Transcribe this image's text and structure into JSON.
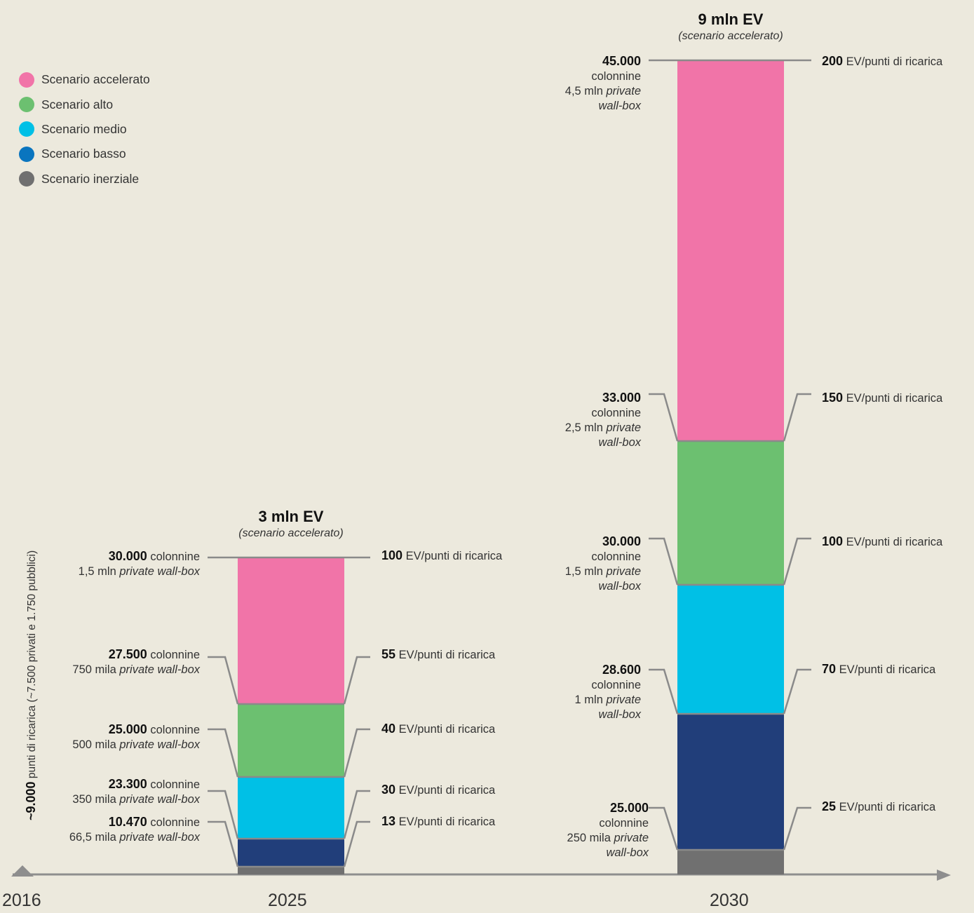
{
  "chart_data": {
    "type": "bar",
    "stacked": true,
    "legend": {
      "position": "top-left",
      "entries": [
        {
          "name": "Scenario accelerato",
          "color": "#f174a8"
        },
        {
          "name": "Scenario alto",
          "color": "#6cc070"
        },
        {
          "name": "Scenario medio",
          "color": "#00c0e6"
        },
        {
          "name": "Scenario basso",
          "color": "#0a75bf"
        },
        {
          "name": "Scenario inerziale",
          "color": "#707070"
        }
      ]
    },
    "x_axis": {
      "labels": [
        "2016",
        "2025",
        "2030"
      ]
    },
    "y_axis_label": {
      "bold": "~9.000",
      "text": " punti di ricarica (~7.500 privati e 1.750 pubblici)"
    },
    "bars": [
      {
        "year": "2025",
        "title": "3 mln EV",
        "subtitle": "(scenario accelerato)",
        "segments": [
          {
            "color": "#707070",
            "value": 10.47
          },
          {
            "color": "#213e7a",
            "value": 23.3
          },
          {
            "color": "#00c0e6",
            "value": 25.0
          },
          {
            "color": "#6cc070",
            "value": 27.5
          },
          {
            "color": "#f174a8",
            "value": 30.0
          }
        ],
        "levels": [
          {
            "value": 10.47,
            "left_bold": "10.470",
            "left_rest": " colonnine",
            "left_line2": "66,5 mila ",
            "left_italic": "private wall-box",
            "right_bold": "13",
            "right_text": " EV/punti di ricarica"
          },
          {
            "value": 23.3,
            "left_bold": "23.300",
            "left_rest": " colonnine",
            "left_line2": "350 mila ",
            "left_italic": "private wall-box",
            "right_bold": "30",
            "right_text": " EV/punti di ricarica"
          },
          {
            "value": 25.0,
            "left_bold": "25.000",
            "left_rest": " colonnine",
            "left_line2": "500 mila ",
            "left_italic": "private wall-box",
            "right_bold": "40",
            "right_text": " EV/punti di ricarica"
          },
          {
            "value": 27.5,
            "left_bold": "27.500",
            "left_rest": " colonnine",
            "left_line2": "750 mila ",
            "left_italic": "private wall-box",
            "right_bold": "55",
            "right_text": " EV/punti di ricarica"
          },
          {
            "value": 30.0,
            "left_bold": "30.000",
            "left_rest": " colonnine",
            "left_line2": "1,5 mln ",
            "left_italic": "private wall-box",
            "right_bold": "100",
            "right_text": " EV/punti di ricarica"
          }
        ]
      },
      {
        "year": "2030",
        "title": "9 mln EV",
        "subtitle": "(scenario accelerato)",
        "segments": [
          {
            "color": "#707070",
            "value": 25.0
          },
          {
            "color": "#213e7a",
            "value": 28.6
          },
          {
            "color": "#00c0e6",
            "value": 30.0
          },
          {
            "color": "#6cc070",
            "value": 33.0
          },
          {
            "color": "#f174a8",
            "value": 45.0
          }
        ],
        "levels": [
          {
            "value": 25.0,
            "left_bold": "25.000",
            "left_rest": "colonnine",
            "left_line2": "250 mila ",
            "left_italic": "private",
            "left_line3": "wall-box",
            "right_bold": "25",
            "right_text": " EV/punti di ricarica"
          },
          {
            "value": 28.6,
            "left_bold": "28.600",
            "left_rest": "colonnine",
            "left_line2": "1 mln ",
            "left_italic": "private",
            "left_line3": "wall-box",
            "right_bold": "70",
            "right_text": " EV/punti di ricarica"
          },
          {
            "value": 30.0,
            "left_bold": "30.000",
            "left_rest": "colonnine",
            "left_line2": "1,5 mln ",
            "left_italic": "private",
            "left_line3": "wall-box",
            "right_bold": "100",
            "right_text": " EV/punti di ricarica"
          },
          {
            "value": 33.0,
            "left_bold": "33.000",
            "left_rest": "colonnine",
            "left_line2": "2,5 mln ",
            "left_italic": "private",
            "left_line3": "wall-box",
            "right_bold": "150",
            "right_text": " EV/punti di ricarica"
          },
          {
            "value": 45.0,
            "left_bold": "45.000",
            "left_rest": "colonnine",
            "left_line2": "4,5 mln ",
            "left_italic": "private",
            "left_line3": "wall-box",
            "right_bold": "200",
            "right_text": " EV/punti di ricarica"
          }
        ]
      }
    ]
  }
}
